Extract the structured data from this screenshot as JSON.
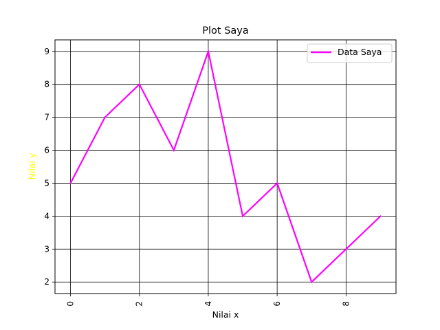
{
  "chart_data": {
    "type": "line",
    "title": "Plot Saya",
    "xlabel": "Nilai x",
    "ylabel": "Nilai y",
    "ylabel_color": "#ffff00",
    "x": [
      0,
      1,
      2,
      3,
      4,
      5,
      6,
      7,
      8,
      9
    ],
    "series": [
      {
        "name": "Data Saya",
        "values": [
          5,
          7,
          8,
          6,
          9,
          4,
          5,
          2,
          3,
          4
        ],
        "color": "#ff00ff"
      }
    ],
    "xlim": [
      -0.45,
      9.45
    ],
    "ylim": [
      1.65,
      9.35
    ],
    "xticks": [
      0,
      2,
      4,
      6,
      8
    ],
    "yticks": [
      2,
      3,
      4,
      5,
      6,
      7,
      8,
      9
    ],
    "xtick_rotation": "vertical",
    "grid": true,
    "grid_color": "#000000",
    "legend_position": "top-right"
  }
}
